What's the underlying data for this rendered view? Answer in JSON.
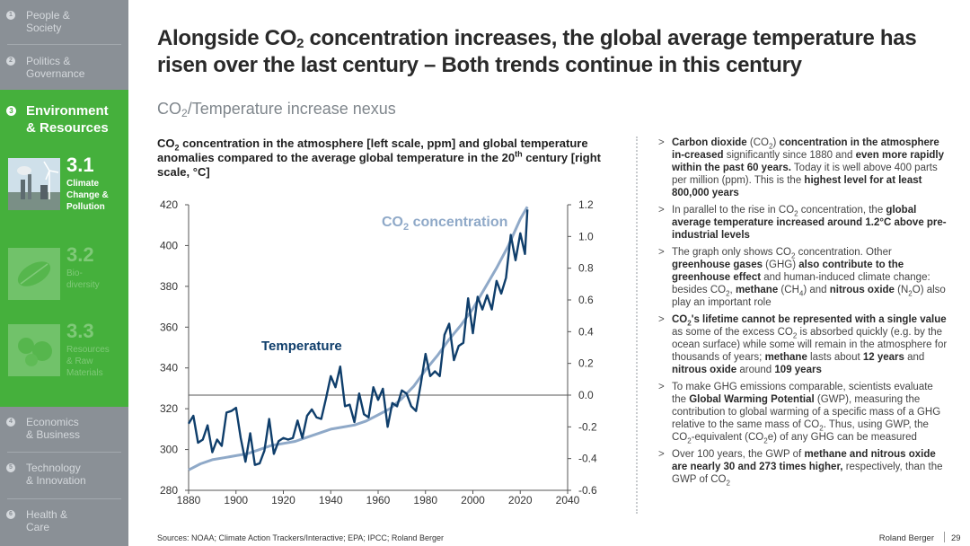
{
  "sidebar": {
    "items": [
      {
        "num": "1",
        "label": "People &\nSociety"
      },
      {
        "num": "2",
        "label": "Politics &\nGovernance"
      },
      {
        "num": "3",
        "label": "Environment\n& Resources"
      },
      {
        "num": "4",
        "label": "Economics\n& Business"
      },
      {
        "num": "5",
        "label": "Technology\n& Innovation"
      },
      {
        "num": "6",
        "label": "Health &\nCare"
      }
    ],
    "subitems": [
      {
        "num": "3.1",
        "label": "Climate\nChange &\nPollution"
      },
      {
        "num": "3.2",
        "label": "Bio-\ndiversity"
      },
      {
        "num": "3.3",
        "label": "Resources\n& Raw\nMaterials"
      }
    ]
  },
  "title": {
    "part1": "Alongside CO",
    "sub": "2",
    "part2": " concentration increases, the global average temperature has risen over the last century – Both trends continue in this century"
  },
  "subtitle": {
    "part1": "CO",
    "sub": "2",
    "part2": "/Temperature increase nexus"
  },
  "chart_heading": {
    "p1": "CO",
    "sub": "2",
    "p2": " concentration in the atmosphere [left scale, ppm] and global temperature anomalies compared to the average global temperature in the 20",
    "sup": "th",
    "p3": " century [right scale, °C]"
  },
  "chart_data": {
    "type": "line",
    "title": "CO2 concentration in the atmosphere [left scale, ppm] and global temperature anomalies compared to the average global temperature in the 20th century [right scale, °C]",
    "x_ticks": [
      1880,
      1900,
      1920,
      1940,
      1960,
      1980,
      2000,
      2020,
      2040
    ],
    "xlim": [
      1880,
      2040
    ],
    "left_axis": {
      "label": "ppm",
      "ylim": [
        280,
        420
      ],
      "ticks": [
        280,
        300,
        320,
        340,
        360,
        380,
        400,
        420
      ]
    },
    "right_axis": {
      "label": "°C",
      "ylim": [
        -0.6,
        1.2
      ],
      "ticks": [
        "-0.6",
        "-0.4",
        "-0.2",
        "0.0",
        "0.2",
        "0.4",
        "0.6",
        "0.8",
        "1.0",
        "1.2"
      ]
    },
    "annotations": {
      "co2_label": "CO",
      "co2_sub": "2",
      "co2_label_rest": " concentration",
      "temp_label": "Temperature"
    },
    "series": [
      {
        "name": "CO2 concentration",
        "axis": "left",
        "color": "#8fa9c8",
        "x": [
          1880,
          1885,
          1890,
          1895,
          1900,
          1905,
          1910,
          1915,
          1920,
          1925,
          1930,
          1935,
          1940,
          1945,
          1950,
          1955,
          1960,
          1965,
          1970,
          1975,
          1980,
          1985,
          1990,
          1995,
          2000,
          2005,
          2010,
          2015,
          2020,
          2023
        ],
        "values": [
          290,
          293,
          295,
          296,
          297,
          298,
          300,
          302,
          303,
          304,
          306,
          308,
          310,
          311,
          312,
          314,
          317,
          320,
          325,
          331,
          339,
          346,
          354,
          361,
          369,
          379,
          389,
          400,
          413,
          419
        ]
      },
      {
        "name": "Temperature",
        "axis": "right",
        "color": "#0f3e6b",
        "x": [
          1880,
          1882,
          1884,
          1886,
          1888,
          1890,
          1892,
          1894,
          1896,
          1898,
          1900,
          1902,
          1904,
          1906,
          1908,
          1910,
          1912,
          1914,
          1916,
          1918,
          1920,
          1922,
          1924,
          1926,
          1928,
          1930,
          1932,
          1934,
          1936,
          1938,
          1940,
          1942,
          1944,
          1946,
          1948,
          1950,
          1952,
          1954,
          1956,
          1958,
          1960,
          1962,
          1964,
          1966,
          1968,
          1970,
          1972,
          1974,
          1976,
          1978,
          1980,
          1982,
          1984,
          1986,
          1988,
          1990,
          1992,
          1994,
          1996,
          1998,
          2000,
          2002,
          2004,
          2006,
          2008,
          2010,
          2012,
          2014,
          2016,
          2018,
          2020,
          2022,
          2023
        ],
        "values": [
          -0.18,
          -0.13,
          -0.3,
          -0.28,
          -0.19,
          -0.36,
          -0.28,
          -0.32,
          -0.11,
          -0.1,
          -0.08,
          -0.27,
          -0.42,
          -0.24,
          -0.44,
          -0.43,
          -0.35,
          -0.15,
          -0.37,
          -0.29,
          -0.27,
          -0.28,
          -0.27,
          -0.16,
          -0.27,
          -0.13,
          -0.09,
          -0.14,
          -0.15,
          -0.02,
          0.12,
          0.05,
          0.18,
          -0.07,
          -0.06,
          -0.17,
          0.01,
          -0.12,
          -0.14,
          0.05,
          -0.03,
          0.04,
          -0.2,
          -0.05,
          -0.07,
          0.03,
          0.01,
          -0.07,
          -0.1,
          0.07,
          0.26,
          0.12,
          0.15,
          0.12,
          0.38,
          0.45,
          0.22,
          0.31,
          0.33,
          0.61,
          0.39,
          0.62,
          0.54,
          0.63,
          0.54,
          0.72,
          0.64,
          0.74,
          1.01,
          0.85,
          1.02,
          0.89,
          1.17
        ]
      }
    ]
  },
  "bullets": [
    {
      "segs": [
        {
          "t": "Carbon dioxide ",
          "b": true
        },
        {
          "t": "(CO"
        },
        {
          "sub": "2"
        },
        {
          "t": ") "
        },
        {
          "t": "concentration in the atmosphere in-creased",
          "b": true
        },
        {
          "t": " significantly since 1880 and "
        },
        {
          "t": "even more rapidly within the past 60 years.",
          "b": true
        },
        {
          "t": " Today it is well above 400 parts per million (ppm). This is the "
        },
        {
          "t": "highest level for at least 800,000 years",
          "b": true
        }
      ]
    },
    {
      "segs": [
        {
          "t": "In parallel to the rise in CO"
        },
        {
          "sub": "2"
        },
        {
          "t": " concentration, the "
        },
        {
          "t": "global average temperature increased around 1.2°C above pre-industrial levels",
          "b": true
        }
      ]
    },
    {
      "segs": [
        {
          "t": "The graph only shows CO"
        },
        {
          "sub": "2"
        },
        {
          "t": " concentration. Other "
        },
        {
          "t": "greenhouse gases",
          "b": true
        },
        {
          "t": " (GHG) "
        },
        {
          "t": "also contribute to the greenhouse effect",
          "b": true
        },
        {
          "t": " and human-induced climate change: besides CO"
        },
        {
          "sub": "2"
        },
        {
          "t": ", "
        },
        {
          "t": "methane",
          "b": true
        },
        {
          "t": " (CH"
        },
        {
          "sub": "4"
        },
        {
          "t": ") and "
        },
        {
          "t": "nitrous oxide",
          "b": true
        },
        {
          "t": " (N"
        },
        {
          "sub": "2"
        },
        {
          "t": "O) also play an important role"
        }
      ]
    },
    {
      "segs": [
        {
          "t": "CO",
          "b": true
        },
        {
          "sub": "2",
          "b": true
        },
        {
          "t": "'s lifetime cannot be represented with a single value",
          "b": true
        },
        {
          "t": "  as some of the excess CO"
        },
        {
          "sub": "2"
        },
        {
          "t": " is absorbed quickly (e.g. by the ocean surface) while some will remain in the atmosphere for thousands of years; "
        },
        {
          "t": "methane",
          "b": true
        },
        {
          "t": " lasts about "
        },
        {
          "t": "12 years",
          "b": true
        },
        {
          "t": " and "
        },
        {
          "t": "nitrous oxide",
          "b": true
        },
        {
          "t": " around "
        },
        {
          "t": "109 years",
          "b": true
        }
      ]
    },
    {
      "segs": [
        {
          "t": "To make GHG emissions comparable, scientists evaluate the "
        },
        {
          "t": "Global Warming Potential",
          "b": true
        },
        {
          "t": " (GWP), measuring the contribution to global warming of a specific mass of a GHG relative to the same mass of CO"
        },
        {
          "sub": "2"
        },
        {
          "t": ". Thus, using GWP, the CO"
        },
        {
          "sub": "2"
        },
        {
          "t": "-equivalent (CO"
        },
        {
          "sub": "2"
        },
        {
          "t": "e) of any GHG can be measured"
        }
      ]
    },
    {
      "segs": [
        {
          "t": "Over 100 years, the GWP of "
        },
        {
          "t": "methane and nitrous oxide are nearly 30 and 273 times higher,",
          "b": true
        },
        {
          "t": " respectively, than the GWP of CO"
        },
        {
          "sub": "2"
        }
      ]
    }
  ],
  "bullet_mark": ">",
  "sources": "Sources: NOAA; Climate Action Trackers/Interactive; EPA; IPCC; Roland Berger",
  "footer": {
    "brand": "Roland Berger",
    "page": "29"
  },
  "colors": {
    "sidebar": "#8a9096",
    "accent": "#45b03c",
    "co2": "#8fa9c8",
    "temperature": "#0f3e6b"
  }
}
